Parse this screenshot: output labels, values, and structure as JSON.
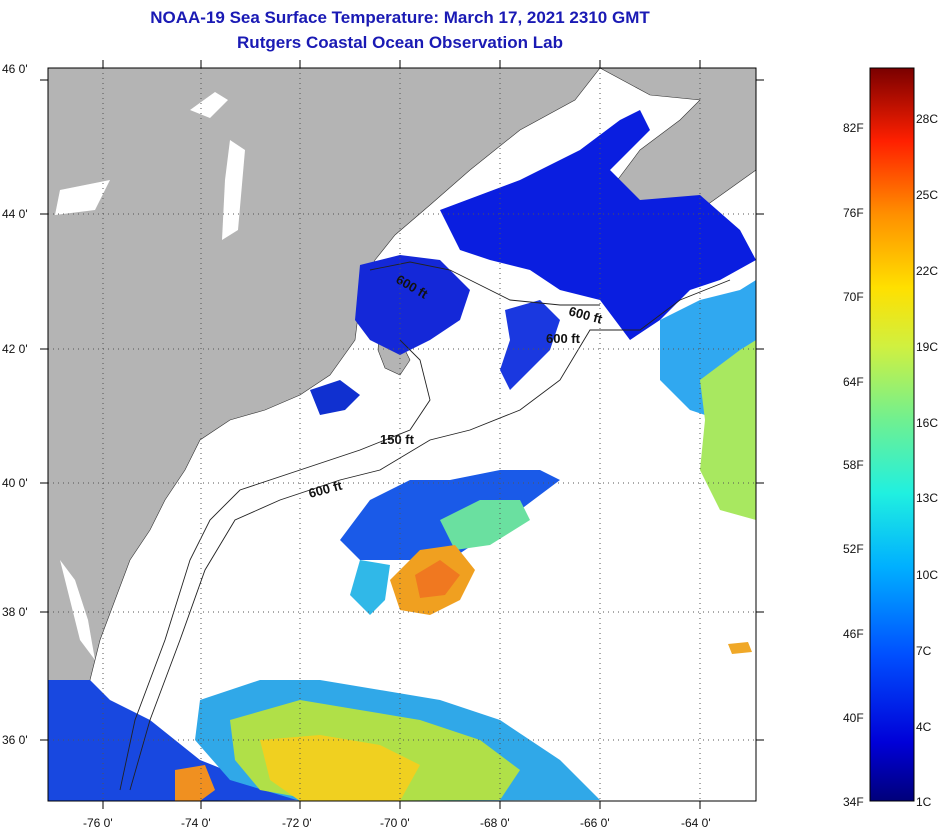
{
  "title_line1": "NOAA-19 Sea Surface Temperature:  March 17, 2021 2310 GMT",
  "title_line2": "Rutgers Coastal Ocean Observation Lab",
  "axes": {
    "lat_labels": [
      "46 0'",
      "44 0'",
      "42 0'",
      "40 0'",
      "38 0'",
      "36 0'"
    ],
    "lon_labels": [
      "-76 0'",
      "-74 0'",
      "-72 0'",
      "-70 0'",
      "-68 0'",
      "-66 0'",
      "-64 0'"
    ]
  },
  "contours": [
    {
      "label": "600 ft"
    },
    {
      "label": "600 ft"
    },
    {
      "label": "600 ft"
    },
    {
      "label": "150 ft"
    },
    {
      "label": "600 ft"
    }
  ],
  "colorbar": {
    "fahrenheit": [
      "82F",
      "76F",
      "70F",
      "64F",
      "58F",
      "52F",
      "46F",
      "40F",
      "34F"
    ],
    "celsius": [
      "28C",
      "25C",
      "22C",
      "19C",
      "16C",
      "13C",
      "10C",
      "7C",
      "4C",
      "1C"
    ]
  },
  "colors": {
    "land": "#b4b4b4",
    "no_data": "#ffffff",
    "title": "#1a1ab4"
  }
}
